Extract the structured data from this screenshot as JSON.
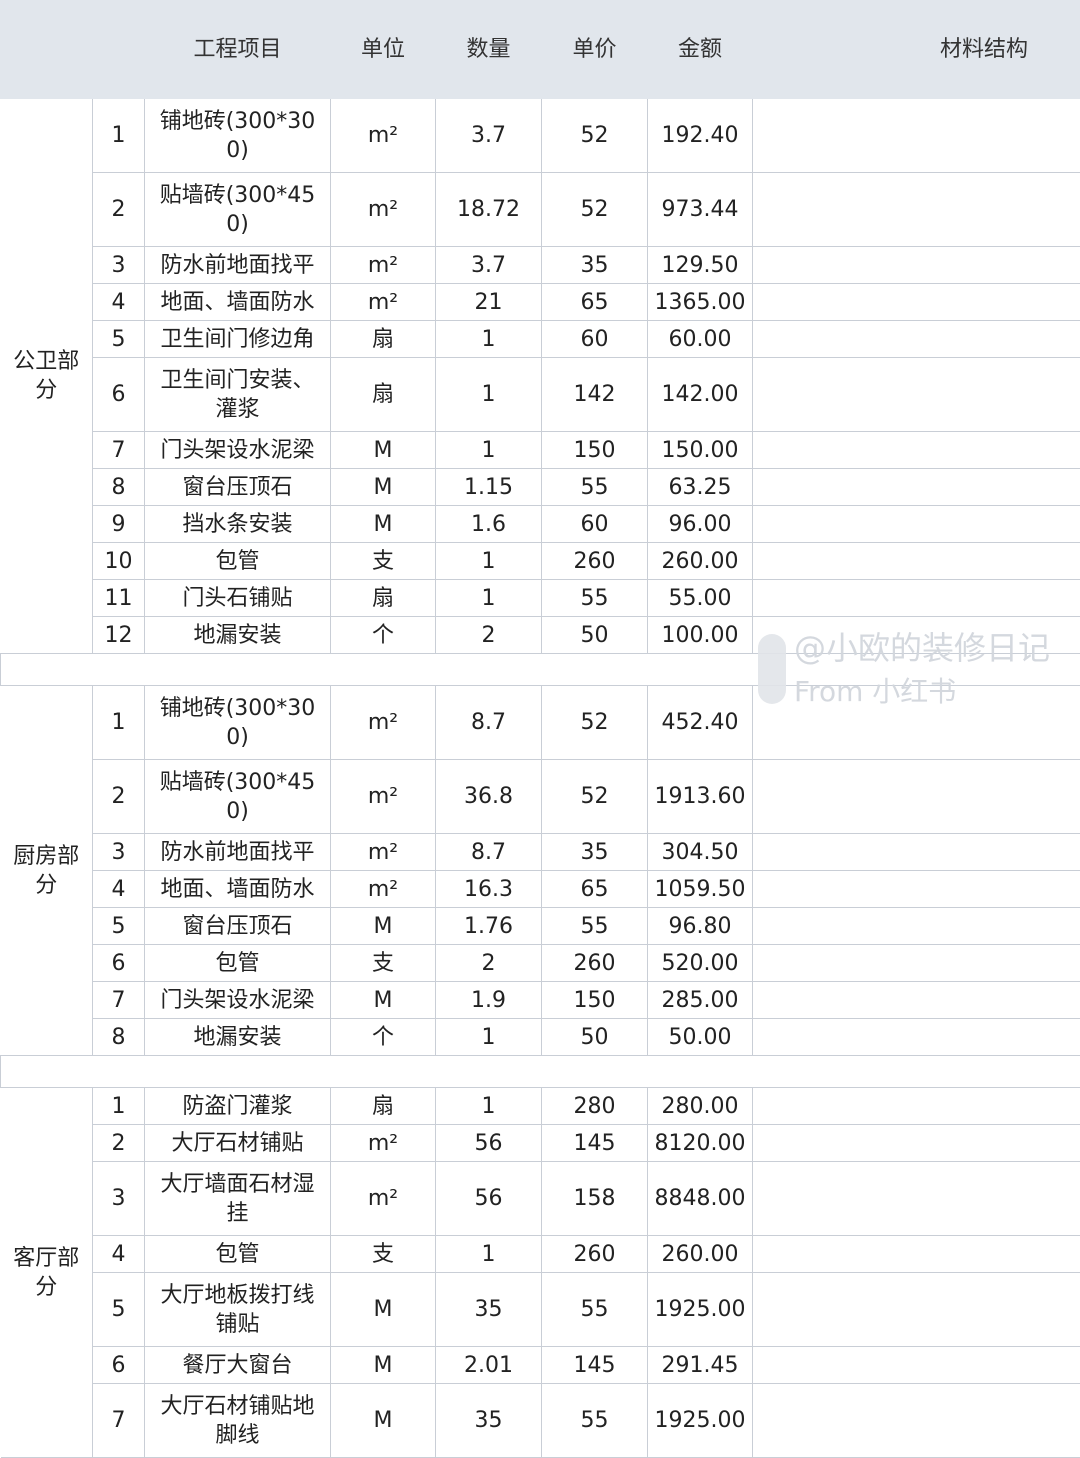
{
  "header": {
    "blank": "",
    "item": "工程项目",
    "unit": "单位",
    "qty": "数量",
    "price": "单价",
    "amount": "金额",
    "material": "材料结构"
  },
  "sections": [
    {
      "label": "公卫部分",
      "rows": [
        [
          "1",
          "铺地砖(300*300)",
          "m²",
          "3.7",
          "52",
          "192.40"
        ],
        [
          "2",
          "贴墙砖(300*450)",
          "m²",
          "18.72",
          "52",
          "973.44"
        ],
        [
          "3",
          "防水前地面找平",
          "m²",
          "3.7",
          "35",
          "129.50"
        ],
        [
          "4",
          "地面、墙面防水",
          "m²",
          "21",
          "65",
          "1365.00"
        ],
        [
          "5",
          "卫生间门修边角",
          "扇",
          "1",
          "60",
          "60.00"
        ],
        [
          "6",
          "卫生间门安装、灌浆",
          "扇",
          "1",
          "142",
          "142.00"
        ],
        [
          "7",
          "门头架设水泥梁",
          "M",
          "1",
          "150",
          "150.00"
        ],
        [
          "8",
          "窗台压顶石",
          "M",
          "1.15",
          "55",
          "63.25"
        ],
        [
          "9",
          "挡水条安装",
          "M",
          "1.6",
          "60",
          "96.00"
        ],
        [
          "10",
          "包管",
          "支",
          "1",
          "260",
          "260.00"
        ],
        [
          "11",
          "门头石铺贴",
          "扇",
          "1",
          "55",
          "55.00"
        ],
        [
          "12",
          "地漏安装",
          "个",
          "2",
          "50",
          "100.00"
        ]
      ]
    },
    {
      "label": "厨房部分",
      "rows": [
        [
          "1",
          "铺地砖(300*300)",
          "m²",
          "8.7",
          "52",
          "452.40"
        ],
        [
          "2",
          "贴墙砖(300*450)",
          "m²",
          "36.8",
          "52",
          "1913.60"
        ],
        [
          "3",
          "防水前地面找平",
          "m²",
          "8.7",
          "35",
          "304.50"
        ],
        [
          "4",
          "地面、墙面防水",
          "m²",
          "16.3",
          "65",
          "1059.50"
        ],
        [
          "5",
          "窗台压顶石",
          "M",
          "1.76",
          "55",
          "96.80"
        ],
        [
          "6",
          "包管",
          "支",
          "2",
          "260",
          "520.00"
        ],
        [
          "7",
          "门头架设水泥梁",
          "M",
          "1.9",
          "150",
          "285.00"
        ],
        [
          "8",
          "地漏安装",
          "个",
          "1",
          "50",
          "50.00"
        ]
      ]
    },
    {
      "label": "客厅部分",
      "rows": [
        [
          "1",
          "防盗门灌浆",
          "扇",
          "1",
          "280",
          "280.00"
        ],
        [
          "2",
          "大厅石材铺贴",
          "m²",
          "56",
          "145",
          "8120.00"
        ],
        [
          "3",
          "大厅墙面石材湿挂",
          "m²",
          "56",
          "158",
          "8848.00"
        ],
        [
          "4",
          "包管",
          "支",
          "1",
          "260",
          "260.00"
        ],
        [
          "5",
          "大厅地板拨打线铺贴",
          "M",
          "35",
          "55",
          "1925.00"
        ],
        [
          "6",
          "餐厅大窗台",
          "M",
          "2.01",
          "145",
          "291.45"
        ],
        [
          "7",
          "大厅石材铺贴地脚线",
          "M",
          "35",
          "55",
          "1925.00"
        ]
      ]
    }
  ],
  "watermark": {
    "line1": "@小欧的装修日记",
    "line2": "From 小红书"
  },
  "colors": {
    "header_bg": "#e1e6ec",
    "border": "#c9ced6"
  }
}
